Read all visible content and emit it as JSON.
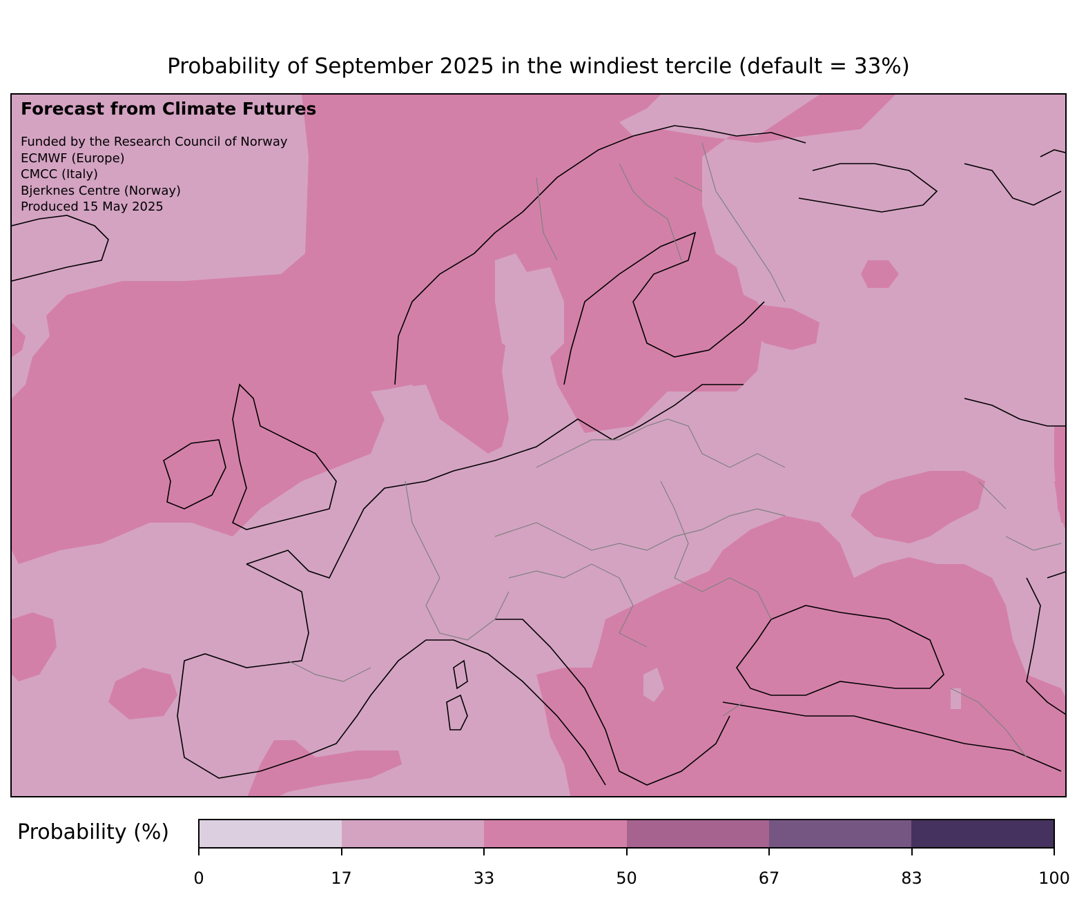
{
  "title": "Probability of September 2025 in the windiest tercile (default = 33%)",
  "credits": {
    "heading": "Forecast from Climate Futures",
    "lines": [
      "Funded by the Research Council of Norway",
      "ECMWF (Europe)",
      "CMCC (Italy)",
      "Bjerknes Centre (Norway)",
      "Produced 15 May 2025"
    ]
  },
  "colorbar": {
    "label": "Probability (%)",
    "ticks": [
      "0",
      "17",
      "33",
      "50",
      "67",
      "83",
      "100"
    ],
    "colors": [
      "#dccfe0",
      "#d4a3c2",
      "#d380a8",
      "#a66390",
      "#755683",
      "#45325e"
    ]
  },
  "map": {
    "region": "Europe",
    "fill_levels": {
      "17-33": "#d4a3c2",
      "33-50": "#d380a8"
    },
    "coast_color": "#000000",
    "border_color": "#808080"
  }
}
